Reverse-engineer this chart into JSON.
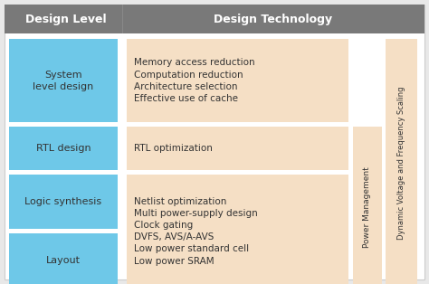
{
  "header_bg": "#797979",
  "header_text_color": "#ffffff",
  "header_left": "Design Level",
  "header_right": "Design Technology",
  "cell_blue": "#6ec8e8",
  "cell_peach": "#f5dfc5",
  "bg_white": "#ffffff",
  "bg_outer": "#e8e8e8",
  "text_dark": "#333333",
  "left_cells": [
    {
      "label": "System\nlevel design"
    },
    {
      "label": "RTL design"
    },
    {
      "label": "Logic synthesis"
    },
    {
      "label": "Layout"
    }
  ],
  "right_cells": [
    {
      "label": "Memory access reduction\nComputation reduction\nArchitecture selection\nEffective use of cache"
    },
    {
      "label": "RTL optimization"
    },
    {
      "label": "Netlist optimization\nMulti power-supply design\nClock gating\nDVFS, AVS/A-AVS\nLow power standard cell\nLow power SRAM"
    }
  ],
  "side_label_1": "Power Management",
  "side_label_2": "Dynamic Voltage and Frequency Scaling"
}
